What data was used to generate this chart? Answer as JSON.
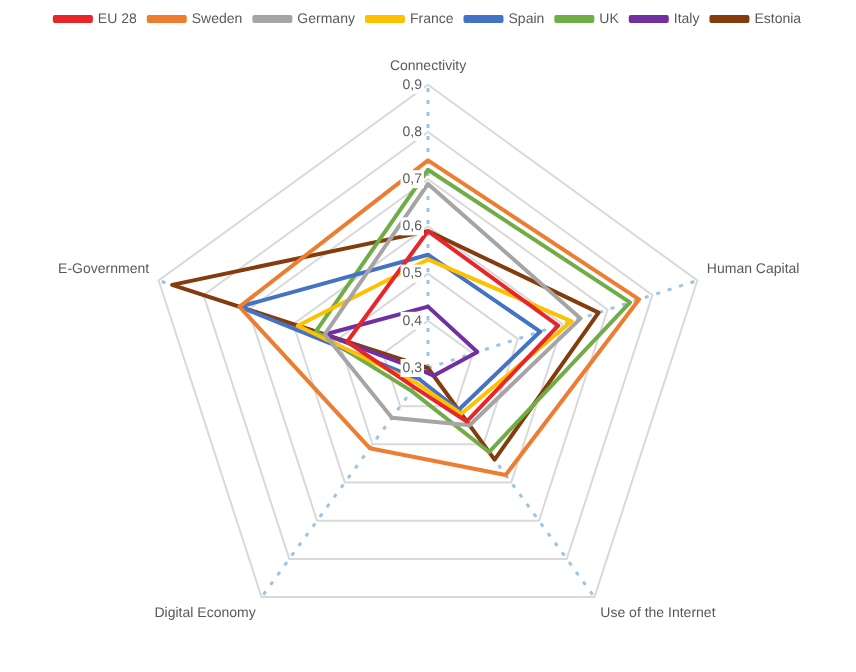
{
  "chart_data": {
    "type": "radar",
    "categories": [
      "Connectivity",
      "Human Capital",
      "Use of the Internet",
      "Digital Economy",
      "E-Government"
    ],
    "series": [
      {
        "name": "EU 28",
        "color": "#e8262a",
        "values": [
          0.59,
          0.59,
          0.44,
          0.35,
          0.48
        ]
      },
      {
        "name": "Sweden",
        "color": "#ed7d31",
        "values": [
          0.74,
          0.77,
          0.58,
          0.51,
          0.72
        ]
      },
      {
        "name": "Germany",
        "color": "#a5a5a5",
        "values": [
          0.69,
          0.64,
          0.45,
          0.43,
          0.53
        ]
      },
      {
        "name": "France",
        "color": "#ffc000",
        "values": [
          0.53,
          0.62,
          0.42,
          0.34,
          0.59
        ]
      },
      {
        "name": "Spain",
        "color": "#4472c4",
        "values": [
          0.54,
          0.55,
          0.41,
          0.33,
          0.72
        ]
      },
      {
        "name": "UK",
        "color": "#70ad47",
        "values": [
          0.72,
          0.75,
          0.52,
          0.36,
          0.55
        ]
      },
      {
        "name": "Italy",
        "color": "#7030a0",
        "values": [
          0.43,
          0.41,
          0.32,
          0.31,
          0.53
        ]
      },
      {
        "name": "Estonia",
        "color": "#843c0c",
        "values": [
          0.59,
          0.68,
          0.54,
          0.3,
          0.87
        ]
      }
    ],
    "ylim": [
      0.3,
      0.9
    ],
    "yticks": [
      {
        "value": 0.3,
        "label": "0,3"
      },
      {
        "value": 0.4,
        "label": "0,4"
      },
      {
        "value": 0.5,
        "label": "0,5"
      },
      {
        "value": 0.6,
        "label": "0,6"
      },
      {
        "value": 0.7,
        "label": "0,7"
      },
      {
        "value": 0.8,
        "label": "0,8"
      },
      {
        "value": 0.9,
        "label": "0,9"
      }
    ],
    "grid": true,
    "legend": "top",
    "marker": "none",
    "line_style": "solid"
  }
}
